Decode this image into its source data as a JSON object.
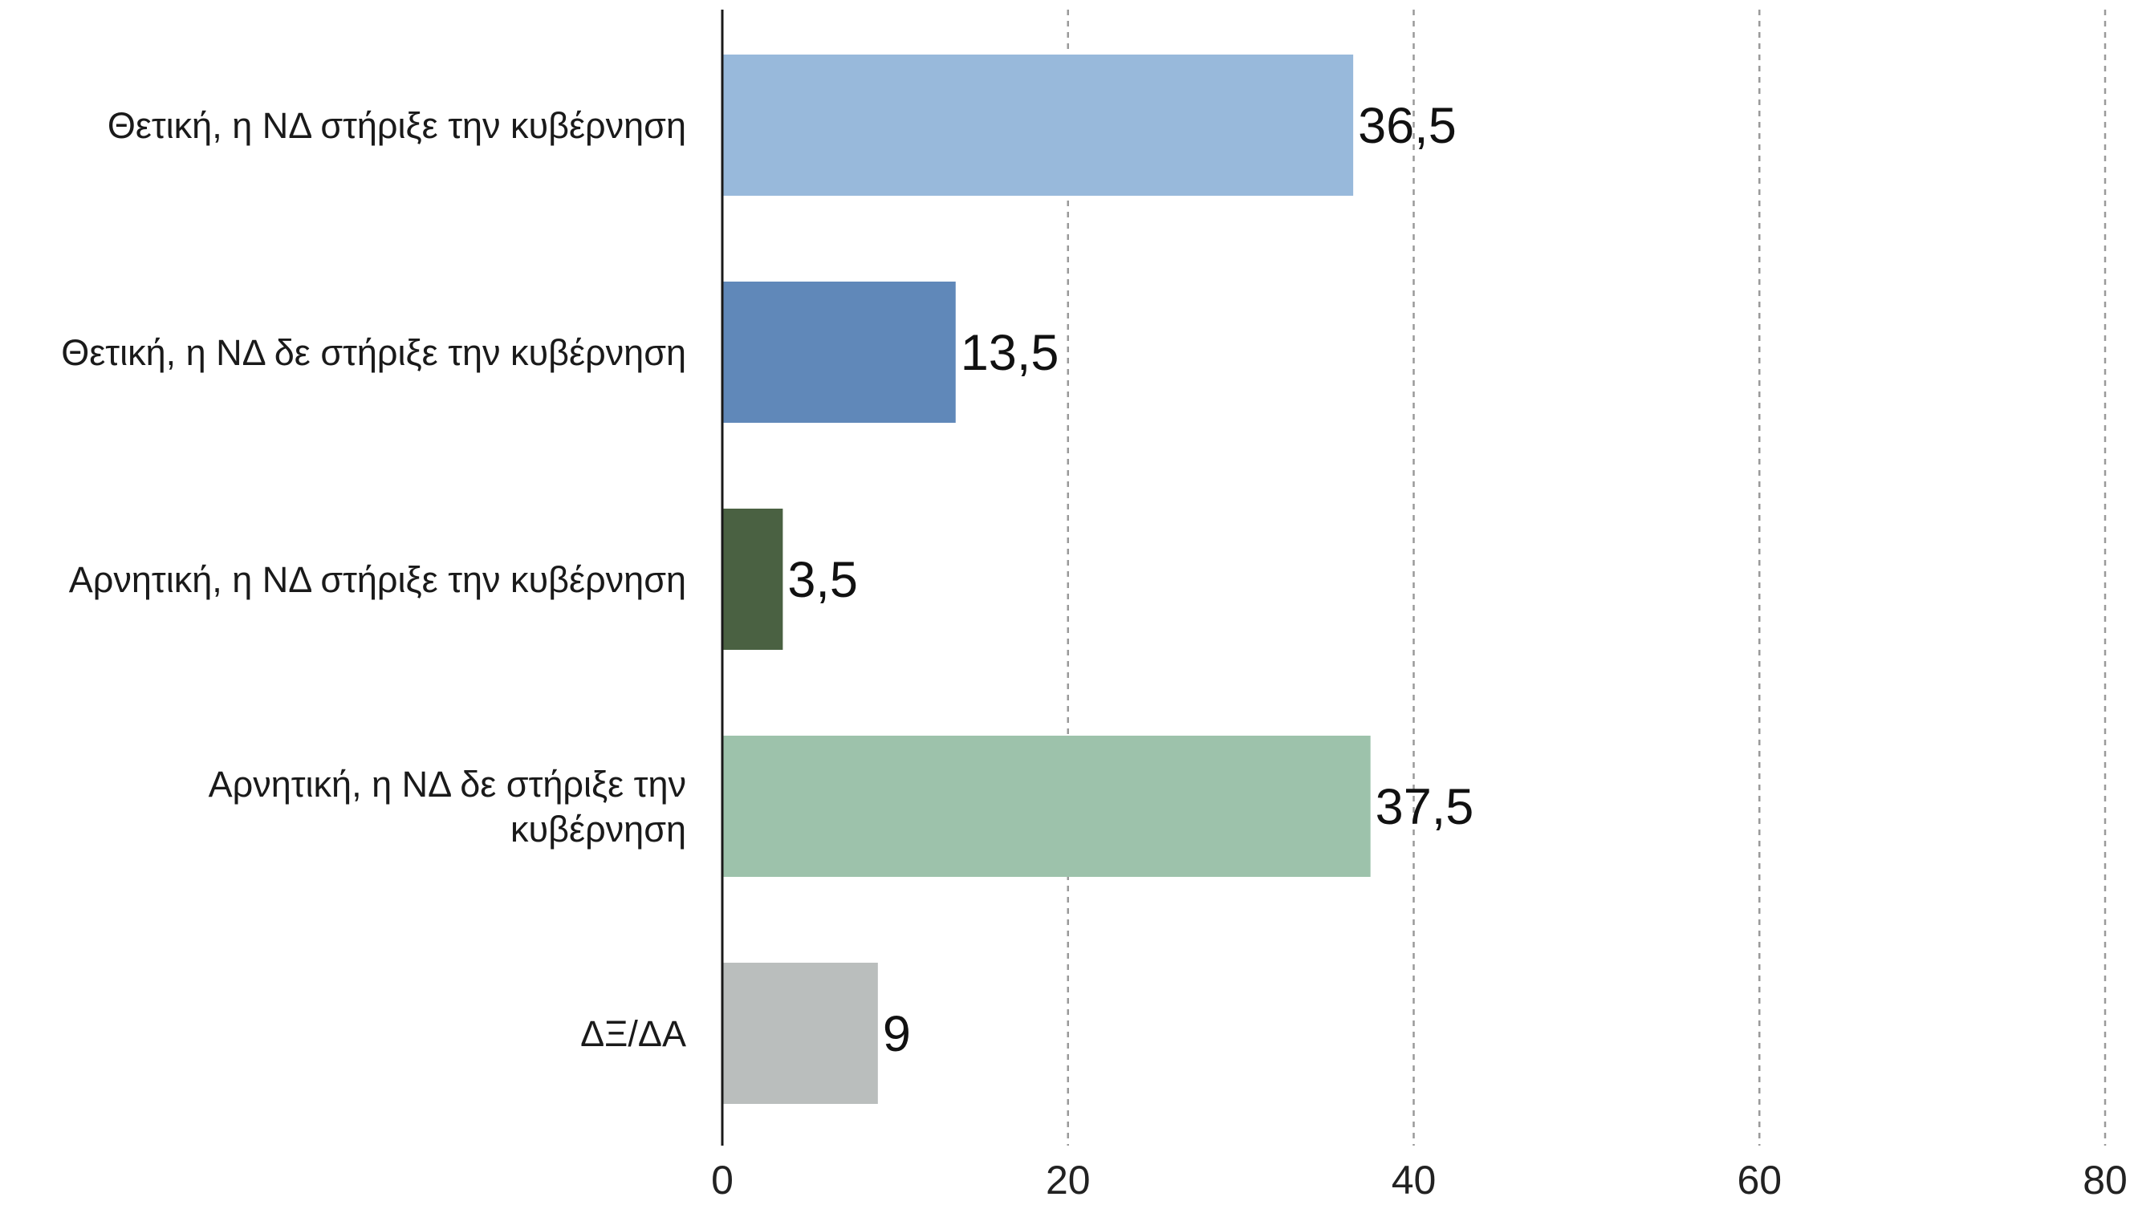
{
  "chart_data": {
    "type": "bar",
    "orientation": "horizontal",
    "categories": [
      [
        "Θετική, η ΝΔ στήριξε την κυβέρνηση"
      ],
      [
        "Θετική, η ΝΔ δε στήριξε την κυβέρνηση"
      ],
      [
        "Αρνητική, η ΝΔ στήριξε την κυβέρνηση"
      ],
      [
        "Αρνητική, η ΝΔ δε στήριξε την",
        "κυβέρνηση"
      ],
      [
        "ΔΞ/ΔΑ"
      ]
    ],
    "values": [
      36.5,
      13.5,
      3.5,
      37.5,
      9
    ],
    "value_labels": [
      "36,5",
      "13,5",
      "3,5",
      "37,5",
      "9"
    ],
    "colors": [
      "#98b9db",
      "#6088b9",
      "#4a6142",
      "#9dc2ab",
      "#babebd"
    ],
    "xlim": [
      0,
      80
    ],
    "xticks": [
      0,
      20,
      40,
      60,
      80
    ],
    "grid": true,
    "grid_style": "dashed-vertical",
    "title": "",
    "xlabel": "",
    "ylabel": "",
    "legend": "none"
  }
}
